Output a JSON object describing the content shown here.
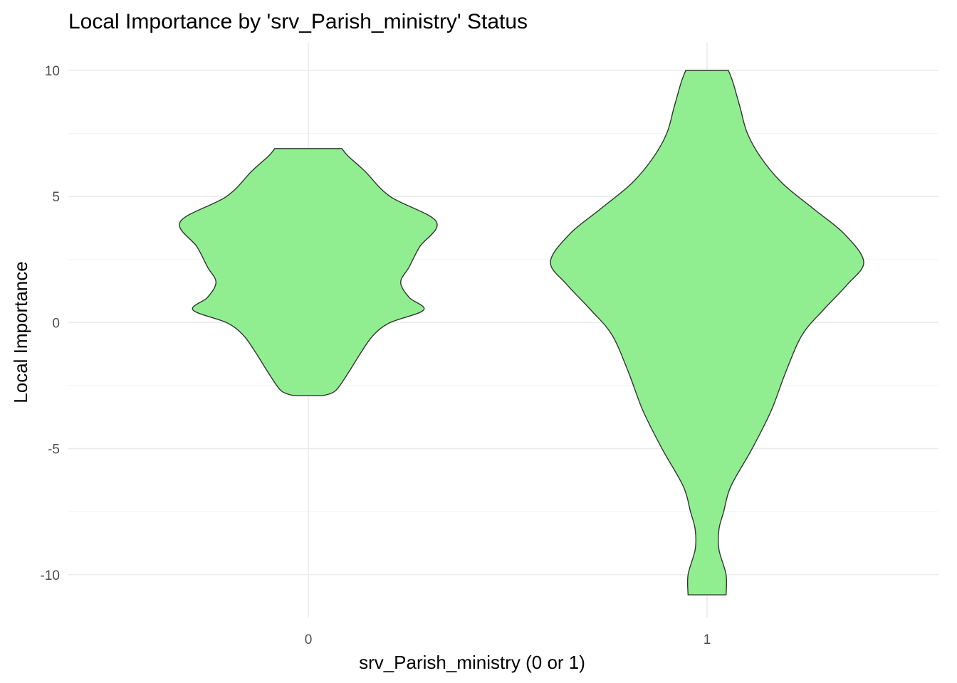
{
  "chart_data": {
    "type": "violin",
    "title": "Local Importance by 'srv_Parish_ministry' Status",
    "xlabel": "srv_Parish_ministry (0 or 1)",
    "ylabel": "Local Importance",
    "categories": [
      "0",
      "1"
    ],
    "yticks": [
      -10,
      -5,
      0,
      5,
      10
    ],
    "ylim": [
      -11.7,
      11.1
    ],
    "fill_color": "#90EE90",
    "stroke_color": "#333333",
    "grid": true,
    "legend": "none",
    "violins": [
      {
        "category": "0",
        "y_min": -2.9,
        "y_max": 6.9,
        "profile": [
          [
            -2.9,
            0.37
          ],
          [
            -2.7,
            0.31
          ],
          [
            -2.0,
            0.25
          ],
          [
            -1.2,
            0.19
          ],
          [
            -0.5,
            0.13
          ],
          [
            0.0,
            0.05
          ],
          [
            0.5,
            -0.11
          ],
          [
            1.0,
            -0.18
          ],
          [
            1.6,
            -0.22
          ],
          [
            2.2,
            -0.18
          ],
          [
            3.0,
            -0.13
          ],
          [
            4.0,
            -0.05
          ],
          [
            5.0,
            0.05
          ],
          [
            6.0,
            0.17
          ],
          [
            6.6,
            0.25
          ],
          [
            6.9,
            0.28
          ]
        ]
      },
      {
        "category": "1",
        "y_min": -10.8,
        "y_max": 10.0,
        "profile": [
          [
            -10.8,
            0.08
          ],
          [
            -10.0,
            0.08
          ],
          [
            -9.0,
            0.05
          ],
          [
            -8.2,
            0.05
          ],
          [
            -7.5,
            0.07
          ],
          [
            -6.5,
            0.1
          ],
          [
            -5.0,
            0.19
          ],
          [
            -3.5,
            0.27
          ],
          [
            -2.0,
            0.33
          ],
          [
            -0.5,
            0.4
          ],
          [
            0.5,
            0.49
          ],
          [
            1.5,
            0.59
          ],
          [
            2.4,
            0.66
          ],
          [
            3.5,
            0.58
          ],
          [
            4.5,
            0.45
          ],
          [
            5.5,
            0.32
          ],
          [
            6.5,
            0.23
          ],
          [
            7.5,
            0.17
          ],
          [
            8.5,
            0.14
          ],
          [
            9.5,
            0.11
          ],
          [
            10.0,
            0.09
          ]
        ]
      }
    ]
  }
}
